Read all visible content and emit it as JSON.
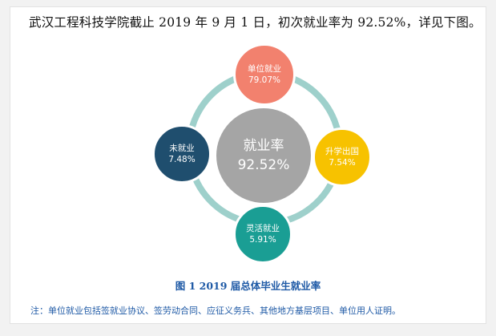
{
  "intro_text": "武汉工程科技学院截止 2019 年 9 月 1 日，初次就业率为 92.52%，详见下图。",
  "diagram": {
    "center": {
      "label": "就业率",
      "value": "92.52%",
      "color": "#a5a5a5"
    },
    "nodes": [
      {
        "id": "top",
        "label": "单位就业",
        "value": "79.07%",
        "color": "#f2816e"
      },
      {
        "id": "right",
        "label": "升学出国",
        "value": "7.54%",
        "color": "#f7c200"
      },
      {
        "id": "bottom",
        "label": "灵活就业",
        "value": "5.91%",
        "color": "#1a9e94"
      },
      {
        "id": "left",
        "label": "未就业",
        "value": "7.48%",
        "color": "#1f4e6e"
      }
    ],
    "ring_color": "#9ed0cb"
  },
  "caption": "图 1 2019 届总体毕业生就业率",
  "note": "注：单位就业包括签就业协议、签劳动合同、应征义务兵、其他地方基层项目、单位用人证明。"
}
